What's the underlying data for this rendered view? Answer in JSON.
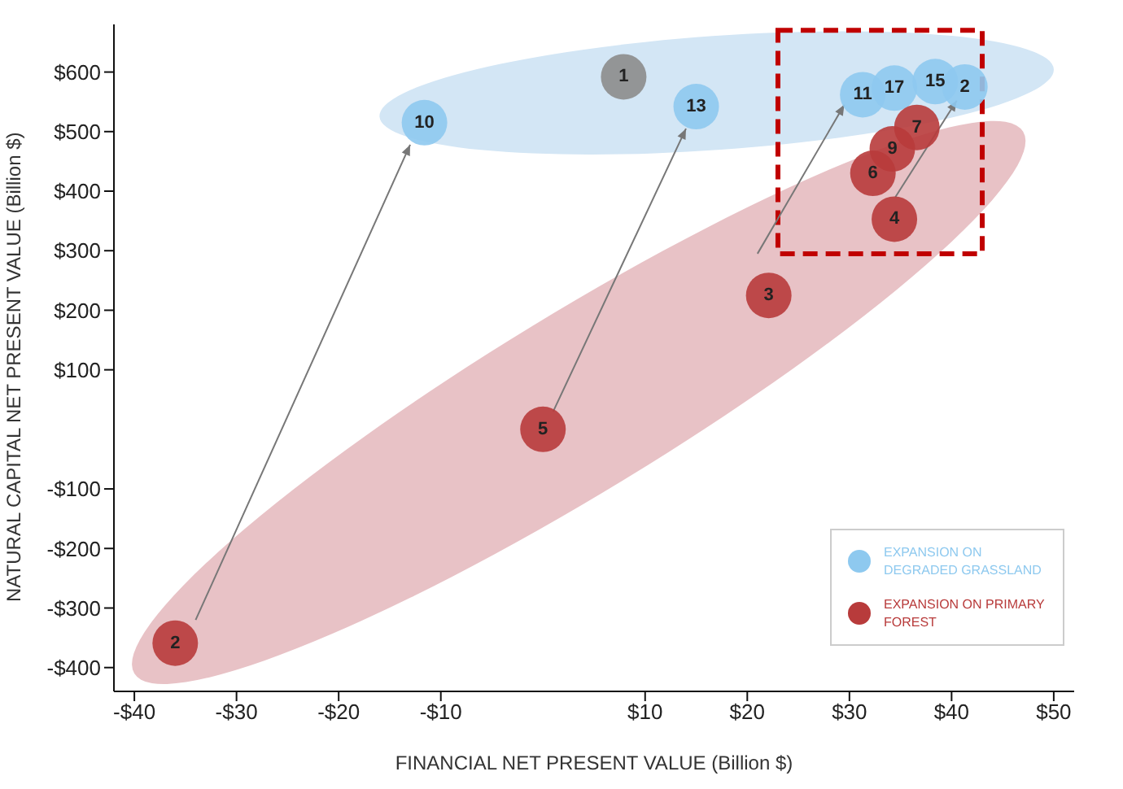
{
  "chart_data": {
    "type": "scatter",
    "xlabel": "FINANCIAL NET PRESENT VALUE (Billion $)",
    "ylabel": "NATURAL CAPITAL NET PRESENT VALUE (Billion $)",
    "xlim": [
      -42,
      52
    ],
    "ylim": [
      -440,
      680
    ],
    "xticks": [
      {
        "value": -40,
        "label": "-$40"
      },
      {
        "value": -30,
        "label": "-$30"
      },
      {
        "value": -20,
        "label": "-$20"
      },
      {
        "value": -10,
        "label": "-$10"
      },
      {
        "value": 10,
        "label": "$10"
      },
      {
        "value": 20,
        "label": "$20"
      },
      {
        "value": 30,
        "label": "$30"
      },
      {
        "value": 40,
        "label": "$40"
      },
      {
        "value": 50,
        "label": "$50"
      }
    ],
    "yticks": [
      {
        "value": -400,
        "label": "-$400"
      },
      {
        "value": -300,
        "label": "-$300"
      },
      {
        "value": -200,
        "label": "-$200"
      },
      {
        "value": -100,
        "label": "-$100"
      },
      {
        "value": 100,
        "label": "$100"
      },
      {
        "value": 200,
        "label": "$200"
      },
      {
        "value": 300,
        "label": "$300"
      },
      {
        "value": 400,
        "label": "$400"
      },
      {
        "value": 500,
        "label": "$500"
      },
      {
        "value": 600,
        "label": "$600"
      }
    ],
    "grid": false,
    "legend": "bottom right",
    "marker": "circle",
    "series": [
      {
        "color": "#8c8c8c",
        "x": [
          7.9
        ],
        "values": [
          592
        ]
      },
      {
        "name": "EXPANSION ON DEGRADED GRASSLAND",
        "color": "#8ec9ef",
        "x": [
          -11.6,
          15,
          31.3,
          34.4,
          38.4,
          41.3
        ],
        "values": [
          515,
          542,
          562,
          573,
          584,
          575
        ]
      },
      {
        "name": "EXPANSION ON PRIMARY FOREST",
        "color": "#b83b3b",
        "x": [
          36.6,
          34.2,
          32.3,
          34.4,
          22.1,
          0,
          -36
        ],
        "values": [
          507,
          471,
          430,
          353,
          225,
          0,
          -359
        ]
      }
    ],
    "annotations": [
      {
        "text": "1",
        "x": 7.9,
        "y": 592
      },
      {
        "text": "10",
        "x": -11.6,
        "y": 515
      },
      {
        "text": "13",
        "x": 15,
        "y": 542
      },
      {
        "text": "11",
        "x": 31.3,
        "y": 562
      },
      {
        "text": "17",
        "x": 34.4,
        "y": 573
      },
      {
        "text": "15",
        "x": 38.4,
        "y": 584
      },
      {
        "text": "2",
        "x": 41.3,
        "y": 575
      },
      {
        "text": "7",
        "x": 36.6,
        "y": 507
      },
      {
        "text": "9",
        "x": 34.2,
        "y": 471
      },
      {
        "text": "6",
        "x": 32.3,
        "y": 430
      },
      {
        "text": "4",
        "x": 34.4,
        "y": 353
      },
      {
        "text": "3",
        "x": 22.1,
        "y": 225
      },
      {
        "text": "5",
        "x": 0,
        "y": 0
      },
      {
        "text": "2",
        "x": -36,
        "y": -359
      }
    ]
  }
}
